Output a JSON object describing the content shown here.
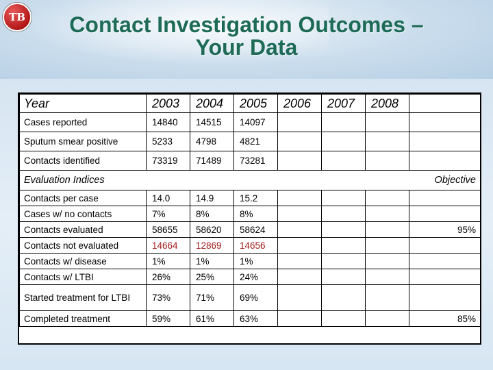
{
  "slide": {
    "title_line1": "Contact Investigation Outcomes –",
    "title_line2": "Your Data",
    "logo_text": "TB"
  },
  "table": {
    "header": {
      "label": "Year",
      "years": [
        "2003",
        "2004",
        "2005",
        "2006",
        "2007",
        "2008"
      ]
    },
    "summary_rows": [
      {
        "label": "Cases reported",
        "values": [
          "14840",
          "14515",
          "14097",
          "",
          "",
          ""
        ]
      },
      {
        "label": "Sputum smear positive",
        "values": [
          "5233",
          "4798",
          "4821",
          "",
          "",
          ""
        ]
      },
      {
        "label": "Contacts identified",
        "values": [
          "73319",
          "71489",
          "73281",
          "",
          "",
          ""
        ]
      }
    ],
    "section": {
      "label": "Evaluation Indices",
      "objective_label": "Objective"
    },
    "indices_rows": [
      {
        "label": "Contacts per case",
        "values": [
          "14.0",
          "14.9",
          "15.2",
          "",
          "",
          ""
        ],
        "objective": "",
        "highlight": false
      },
      {
        "label": "Cases w/ no contacts",
        "values": [
          "7%",
          "8%",
          "8%",
          "",
          "",
          ""
        ],
        "objective": "",
        "highlight": false
      },
      {
        "label": "Contacts evaluated",
        "values": [
          "58655",
          "58620",
          "58624",
          "",
          "",
          ""
        ],
        "objective": "95%",
        "highlight": false
      },
      {
        "label": "Contacts not evaluated",
        "values": [
          "14664",
          "12869",
          "14656",
          "",
          "",
          ""
        ],
        "objective": "",
        "highlight": true
      },
      {
        "label": "Contacts w/ disease",
        "values": [
          "1%",
          "1%",
          "1%",
          "",
          "",
          ""
        ],
        "objective": "",
        "highlight": false
      },
      {
        "label": "Contacts w/ LTBI",
        "values": [
          "26%",
          "25%",
          "24%",
          "",
          "",
          ""
        ],
        "objective": "",
        "highlight": false
      },
      {
        "label": "Started treatment for LTBI",
        "values": [
          "73%",
          "71%",
          "69%",
          "",
          "",
          ""
        ],
        "objective": "",
        "highlight": false
      },
      {
        "label": "Completed treatment",
        "values": [
          "59%",
          "61%",
          "63%",
          "",
          "",
          ""
        ],
        "objective": "85%",
        "highlight": false
      }
    ],
    "highlight_color": "#a01818"
  }
}
